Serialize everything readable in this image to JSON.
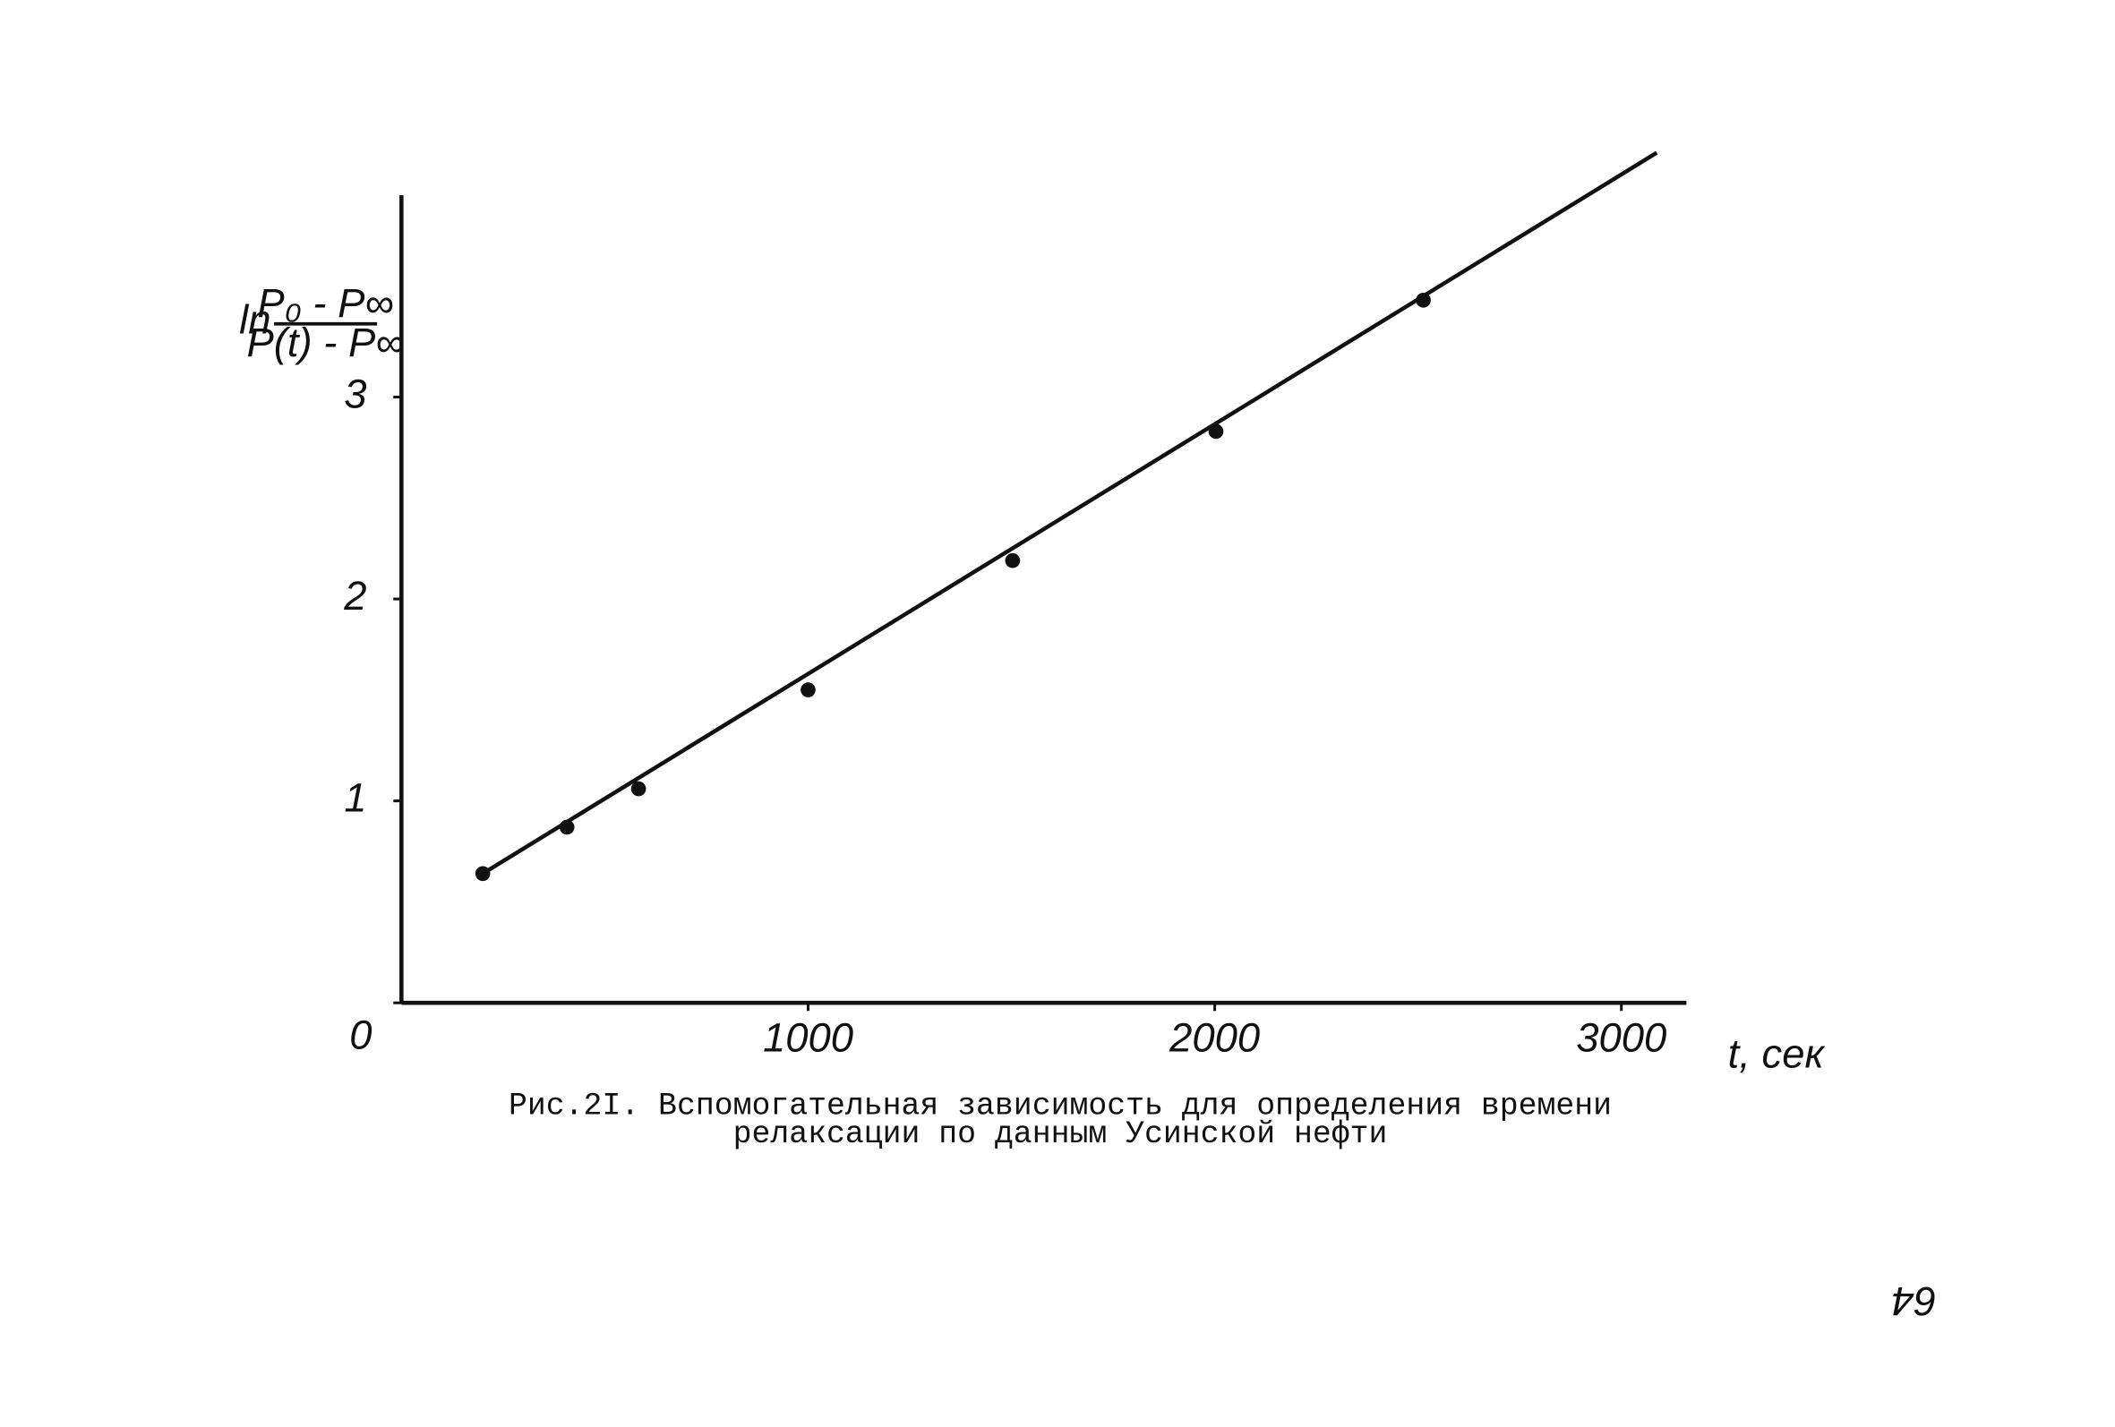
{
  "chart_data": {
    "type": "scatter",
    "y_label": {
      "prefix": "ln",
      "numerator": "P₀ - P∞",
      "denominator": "P(t) - P∞"
    },
    "x_label": "t, сек",
    "caption": [
      "Рис.2I. Вспомогательная зависимость для определения времени",
      "релаксации по данным Усинской нефти"
    ],
    "page_number": "64",
    "x": [
      200,
      407,
      583,
      1000,
      1503,
      2003,
      2513
    ],
    "values": [
      0.64,
      0.87,
      1.06,
      1.55,
      2.19,
      2.83,
      3.48
    ],
    "color": "#111111",
    "line": {
      "x": [
        200,
        3087
      ],
      "values": [
        0.64,
        4.21
      ]
    },
    "xlim": [
      0,
      3160
    ],
    "ylim": [
      0,
      4
    ],
    "xticks": [
      1000,
      2000,
      3000
    ],
    "yticks": [
      0,
      1,
      2,
      3
    ]
  }
}
